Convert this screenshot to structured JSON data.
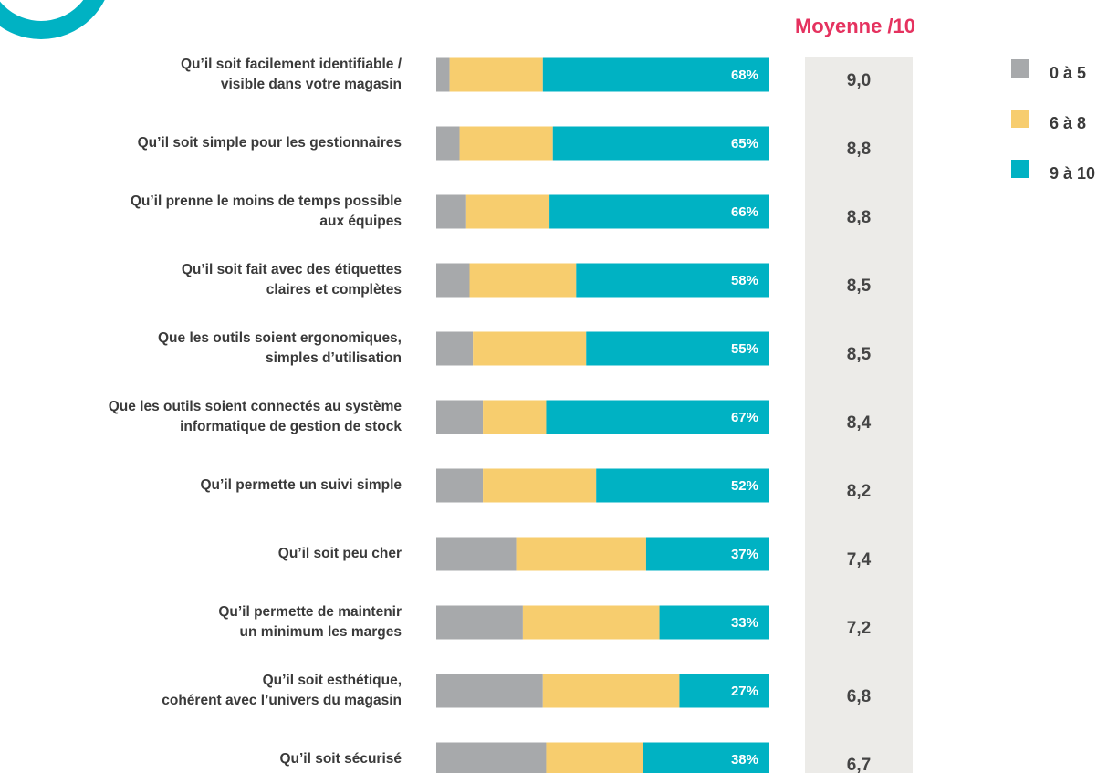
{
  "chart_data": {
    "type": "stacked-bar-horizontal",
    "categories": [
      [
        "Qu’il soit facilement identifiable /",
        "visible dans votre magasin"
      ],
      [
        "Qu’il soit simple pour les gestionnaires"
      ],
      [
        "Qu’il prenne le moins de temps possible",
        "aux équipes"
      ],
      [
        "Qu’il soit fait avec des étiquettes",
        "claires et  complètes"
      ],
      [
        "Que les outils soient ergonomiques,",
        "simples d’utilisation"
      ],
      [
        "Que les outils soient connectés au système",
        "informatique de gestion de stock"
      ],
      [
        "Qu’il permette un suivi simple"
      ],
      [
        "Qu’il soit peu cher"
      ],
      [
        "Qu’il permette de maintenir",
        "un minimum les marges"
      ],
      [
        "Qu’il soit esthétique,",
        "cohérent avec l’univers du magasin"
      ],
      [
        "Qu’il soit sécurisé"
      ]
    ],
    "series": [
      {
        "name": "0 à 5",
        "color": "#a7a9ab",
        "values": [
          4,
          7,
          9,
          10,
          11,
          14,
          14,
          24,
          26,
          32,
          33
        ]
      },
      {
        "name": "6 à 8",
        "color": "#f7cd6e",
        "values": [
          28,
          28,
          25,
          32,
          34,
          19,
          34,
          39,
          41,
          41,
          29
        ]
      },
      {
        "name": "9 à 10",
        "color": "#00b2c3",
        "values": [
          68,
          65,
          66,
          58,
          55,
          67,
          52,
          37,
          33,
          27,
          38
        ],
        "value_labels": [
          "68%",
          "65%",
          "66%",
          "58%",
          "55%",
          "67%",
          "52%",
          "37%",
          "33%",
          "27%",
          "38%"
        ]
      }
    ],
    "averages": {
      "title": "Moyenne /10",
      "values": [
        9.0,
        8.8,
        8.8,
        8.5,
        8.5,
        8.4,
        8.2,
        7.4,
        7.2,
        6.8,
        6.7
      ],
      "value_labels": [
        "9,0",
        "8,8",
        "8,8",
        "8,5",
        "8,5",
        "8,4",
        "8,2",
        "7,4",
        "7,2",
        "6,8",
        "6,7"
      ]
    }
  }
}
